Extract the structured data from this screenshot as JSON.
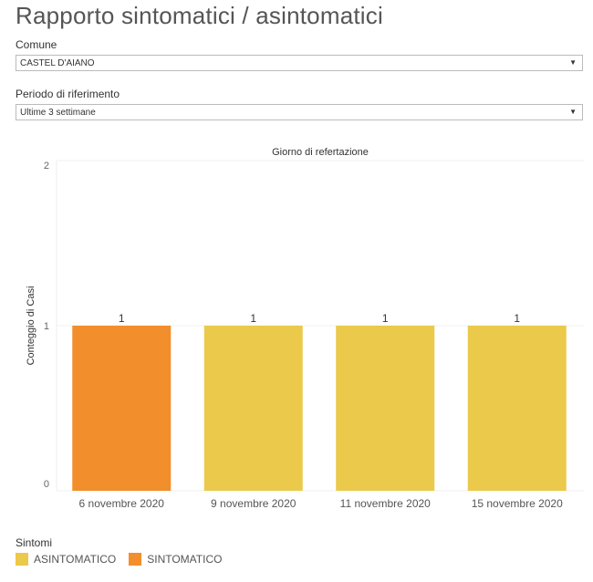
{
  "page": {
    "title": "Rapporto sintomatici / asintomatici"
  },
  "filters": {
    "comune": {
      "label": "Comune",
      "value": "CASTEL D'AIANO"
    },
    "periodo": {
      "label": "Periodo di riferimento",
      "value": "Ultime 3 settimane"
    }
  },
  "chart_data": {
    "type": "bar",
    "title": "Giorno di refertazione",
    "xlabel": "",
    "ylabel": "Conteggio di Casi",
    "categories": [
      "6 novembre 2020",
      "9 novembre 2020",
      "11 novembre 2020",
      "15 novembre 2020"
    ],
    "values": [
      1,
      1,
      1,
      1
    ],
    "series_by_bar": [
      "SINTOMATICO",
      "ASINTOMATICO",
      "ASINTOMATICO",
      "ASINTOMATICO"
    ],
    "data_labels": [
      "1",
      "1",
      "1",
      "1"
    ],
    "ylim": [
      0,
      2
    ],
    "yticks": [
      "0",
      "1",
      "2"
    ],
    "grid": true,
    "legend": {
      "title": "Sintomi",
      "placement": "bottom-left",
      "entries": [
        {
          "name": "ASINTOMATICO",
          "color": "#EBC94A"
        },
        {
          "name": "SINTOMATICO",
          "color": "#F28E2B"
        }
      ]
    }
  }
}
